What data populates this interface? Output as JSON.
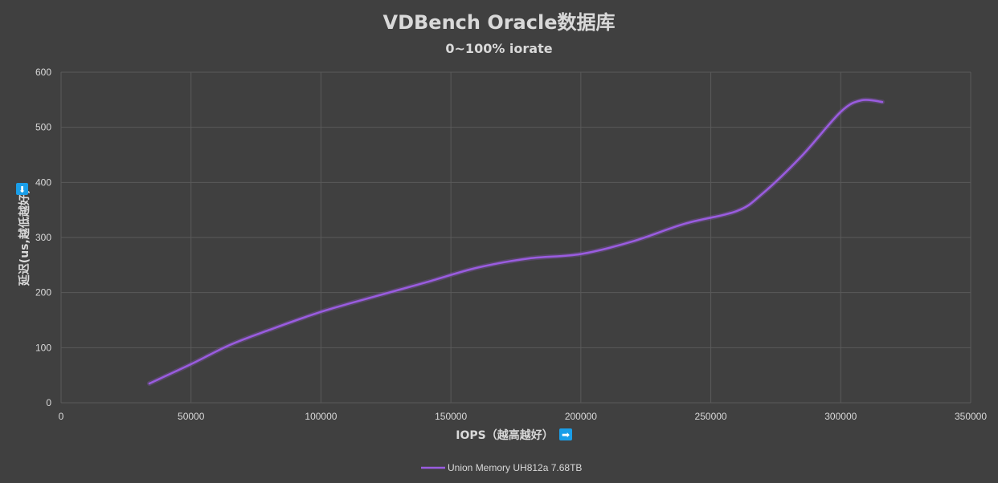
{
  "chart_data": {
    "type": "line",
    "title": "VDBench Oracle数据库",
    "subtitle": "0~100% iorate",
    "xlabel": "IOPS（越高越好）",
    "xlabel_arrow": "➡",
    "ylabel": "延迟(us,越低越好)",
    "ylabel_arrow": "⬇",
    "xlim": [
      0,
      350000
    ],
    "ylim": [
      0,
      600
    ],
    "x_ticks": [
      0,
      50000,
      100000,
      150000,
      200000,
      250000,
      300000,
      350000
    ],
    "y_ticks": [
      0,
      100,
      200,
      300,
      400,
      500,
      600
    ],
    "grid": true,
    "legend_position": "bottom",
    "colors": {
      "background": "#404040",
      "series": "#9a5ce0",
      "text": "#d9d9d9",
      "grid": "#5a5a5a",
      "arrow_badge": "#1a9ee8"
    },
    "series": [
      {
        "name": "Union Memory UH812a 7.68TB",
        "points": [
          [
            34000,
            35
          ],
          [
            50000,
            70
          ],
          [
            65000,
            105
          ],
          [
            80000,
            132
          ],
          [
            100000,
            165
          ],
          [
            120000,
            192
          ],
          [
            140000,
            218
          ],
          [
            160000,
            245
          ],
          [
            180000,
            262
          ],
          [
            200000,
            270
          ],
          [
            220000,
            293
          ],
          [
            240000,
            325
          ],
          [
            260000,
            348
          ],
          [
            270000,
            380
          ],
          [
            285000,
            448
          ],
          [
            300000,
            528
          ],
          [
            308000,
            549
          ],
          [
            316000,
            546
          ]
        ]
      }
    ]
  }
}
